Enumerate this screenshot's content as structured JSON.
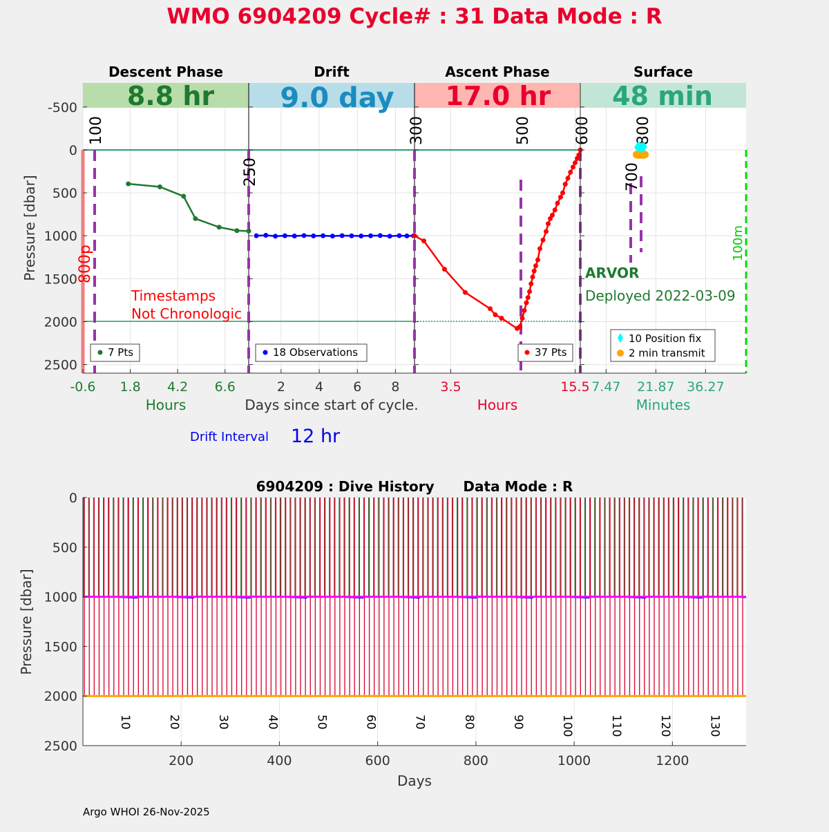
{
  "title": "WMO 6904209   Cycle# : 31   Data Mode : R",
  "colors": {
    "title": "#e8002d",
    "descent": "#1e7a2e",
    "descent_bg": "#b9dcab",
    "drift": "#0000ff",
    "drift_bg": "#b7dde8",
    "drift_text": "#1a8cc0",
    "ascent": "#ff0000",
    "ascent_bg": "#ffb6b1",
    "surface_text": "#2aa77a",
    "surface_bg": "#c2e6d6",
    "marker_purple": "#9933aa",
    "teal_line": "#2a9d75",
    "dive_red": "#d6002d",
    "dive_green": "#1e7a2e",
    "dive_magenta": "#ff00ff",
    "dive_orange": "#ffa500"
  },
  "top": {
    "ylabel": "Pressure [dbar]",
    "yticks": [
      "-500",
      "0",
      "500",
      "1000",
      "1500",
      "2000",
      "2500"
    ],
    "ytick_values": [
      -500,
      0,
      500,
      1000,
      1500,
      2000,
      2500
    ],
    "left_red_label": "800p",
    "right_green_label": "100m",
    "panels": [
      {
        "id": "descent",
        "header": "Descent Phase",
        "duration": "8.8 hr",
        "xlabel": "Hours",
        "xticks": [
          "-0.6",
          "1.8",
          "4.2",
          "6.6"
        ],
        "xtick_values": [
          -0.6,
          1.8,
          4.2,
          6.6
        ],
        "xrange": [
          -0.6,
          7.8
        ],
        "legend": "7 Pts",
        "markers": [
          "100"
        ],
        "marker_values": [
          0
        ],
        "note_line1": "Timestamps",
        "note_line2": "Not Chronologic"
      },
      {
        "id": "drift",
        "header": "Drift",
        "duration": "9.0 day",
        "xlabel": "Days since start of cycle.",
        "xticks": [
          "2",
          "4",
          "6",
          "8"
        ],
        "xtick_values": [
          2,
          4,
          6,
          8
        ],
        "xrange": [
          0.3,
          9.0
        ],
        "legend": "18 Observations",
        "markers": [
          "250"
        ],
        "marker_values": [
          0.3
        ]
      },
      {
        "id": "ascent",
        "header": "Ascent Phase",
        "duration": "17.0 hr",
        "xlabel": "Hours",
        "xticks": [
          "3.5",
          "15.5"
        ],
        "xtick_values": [
          3.5,
          15.5
        ],
        "xrange": [
          0,
          16.0
        ],
        "legend": "37 Pts",
        "markers": [
          "300",
          "500",
          "600"
        ],
        "marker_values": [
          0,
          10.3,
          16.0
        ]
      },
      {
        "id": "surface",
        "header": "Surface",
        "duration": "48 min",
        "xlabel": "Minutes",
        "xticks": [
          "7.47",
          "21.87",
          "36.27"
        ],
        "xtick_values": [
          7.47,
          21.87,
          36.27
        ],
        "xrange": [
          0,
          48
        ],
        "legend_fix": "10 Position fix",
        "legend_transmit": "2 min transmit",
        "markers": [
          "700",
          "800"
        ],
        "marker_values": [
          14.8,
          17.3
        ],
        "float_type": "ARVOR",
        "deployed": "Deployed 2022-03-09"
      }
    ],
    "drift_interval_label": "Drift Interval",
    "drift_interval_value": "12 hr"
  },
  "chart_data": [
    {
      "type": "line",
      "title": "Descent Phase",
      "xlabel": "Hours",
      "ylabel": "Pressure [dbar]",
      "ylim": [
        -800,
        2600
      ],
      "series": [
        {
          "name": "7 Pts",
          "x": [
            1.7,
            3.3,
            4.5,
            5.1,
            6.3,
            7.2,
            7.8
          ],
          "y": [
            395,
            430,
            540,
            800,
            900,
            940,
            945
          ]
        }
      ]
    },
    {
      "type": "line",
      "title": "Drift",
      "xlabel": "Days since start of cycle.",
      "ylabel": "Pressure [dbar]",
      "ylim": [
        -800,
        2600
      ],
      "series": [
        {
          "name": "18 Observations",
          "x": [
            0.7,
            1.2,
            1.7,
            2.2,
            2.7,
            3.2,
            3.7,
            4.2,
            4.7,
            5.2,
            5.7,
            6.2,
            6.7,
            7.2,
            7.7,
            8.2,
            8.6,
            8.95
          ],
          "y": [
            1000,
            995,
            1005,
            1000,
            1003,
            998,
            1002,
            1000,
            1004,
            999,
            1001,
            1003,
            1000,
            998,
            1005,
            999,
            1002,
            1000
          ]
        }
      ]
    },
    {
      "type": "line",
      "title": "Ascent Phase",
      "xlabel": "Hours",
      "ylabel": "Pressure [dbar]",
      "ylim": [
        -800,
        2600
      ],
      "series": [
        {
          "name": "37 Pts",
          "x": [
            0,
            0.9,
            2.9,
            4.9,
            7.3,
            7.8,
            8.4,
            9.9,
            10.15,
            10.4,
            10.6,
            10.8,
            10.95,
            11.1,
            11.25,
            11.4,
            11.55,
            11.7,
            11.9,
            12.1,
            12.4,
            12.7,
            12.9,
            13.1,
            13.3,
            13.55,
            13.8,
            14.1,
            14.3,
            14.55,
            14.8,
            15.05,
            15.3,
            15.5,
            15.7,
            15.85,
            16.0
          ],
          "y": [
            1000,
            1060,
            1390,
            1660,
            1850,
            1920,
            1960,
            2080,
            2060,
            1960,
            1870,
            1780,
            1720,
            1650,
            1560,
            1480,
            1410,
            1350,
            1280,
            1150,
            1050,
            950,
            860,
            800,
            760,
            700,
            620,
            550,
            500,
            400,
            330,
            260,
            200,
            150,
            100,
            60,
            0
          ]
        }
      ]
    },
    {
      "type": "scatter",
      "title": "Surface",
      "xlabel": "Minutes",
      "ylabel": "Pressure [dbar]",
      "ylim": [
        -800,
        2600
      ],
      "series": [
        {
          "name": "10 Position fix",
          "x": [
            16.6,
            17.0,
            17.4,
            17.8,
            18.2,
            16.8,
            17.2,
            17.6,
            18.0,
            18.4
          ],
          "y": [
            50,
            60,
            40,
            55,
            45,
            70,
            65,
            35,
            50,
            60
          ]
        },
        {
          "name": "2 min transmit",
          "x": [
            16.3,
            16.9,
            17.5,
            18.1,
            18.7
          ],
          "y": [
            55,
            60,
            55,
            60,
            55
          ]
        }
      ]
    },
    {
      "type": "line",
      "title": "6904209 : Dive History      Data Mode : R",
      "xlabel": "Days",
      "ylabel": "Pressure [dbar]",
      "xlim": [
        0,
        1350
      ],
      "ylim": [
        0,
        2500
      ],
      "xticks": [
        200,
        400,
        600,
        800,
        1000,
        1200
      ],
      "yticks": [
        0,
        500,
        1000,
        1500,
        2000,
        2500
      ],
      "drift_pressure": 1000,
      "profile_pressure": 2000,
      "cycle_count": 135,
      "cycle_labels": [
        "10",
        "20",
        "30",
        "40",
        "50",
        "60",
        "70",
        "80",
        "90",
        "100",
        "110",
        "120",
        "130"
      ],
      "cycle_label_days": [
        90,
        190,
        290,
        390,
        490,
        590,
        690,
        790,
        890,
        990,
        1090,
        1190,
        1290
      ]
    }
  ],
  "bottom": {
    "title": "6904209 : Dive History      Data Mode : R",
    "xlabel": "Days",
    "ylabel": "Pressure [dbar]",
    "xticks": [
      "200",
      "400",
      "600",
      "800",
      "1000",
      "1200"
    ],
    "yticks": [
      "0",
      "500",
      "1000",
      "1500",
      "2000",
      "2500"
    ]
  },
  "footer": "Argo WHOI 26-Nov-2025"
}
